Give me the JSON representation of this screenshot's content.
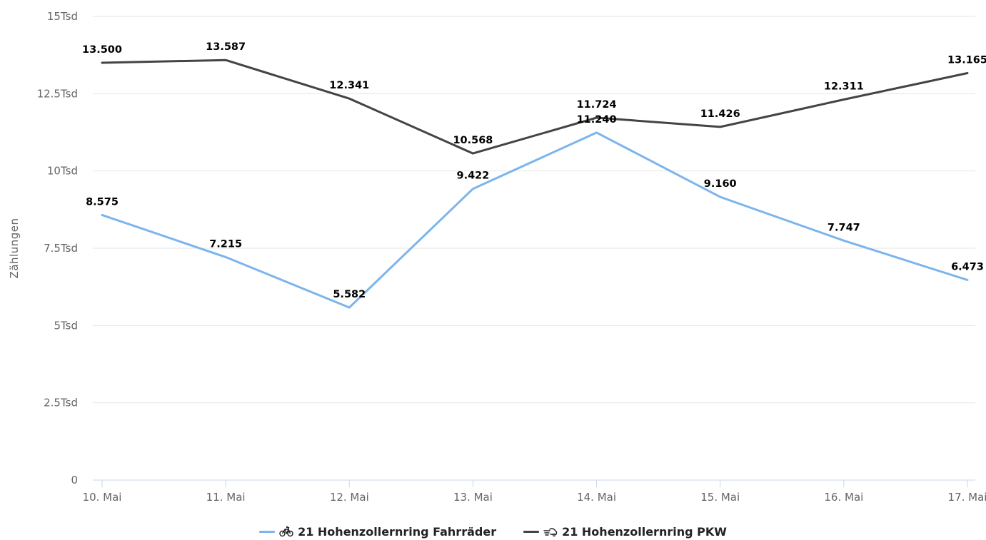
{
  "chart_data": {
    "type": "line",
    "categories": [
      "10. Mai",
      "11. Mai",
      "12. Mai",
      "13. Mai",
      "14. Mai",
      "15. Mai",
      "16. Mai",
      "17. Mai"
    ],
    "series": [
      {
        "name": "21 Hohenzollernring Fahrräder",
        "icon": "bicycle-icon",
        "color": "#7cb5ec",
        "values": [
          8575,
          7215,
          5582,
          9422,
          11240,
          9160,
          7747,
          6473
        ],
        "labels": [
          "8.575",
          "7.215",
          "5.582",
          "9.422",
          "11.240",
          "9.160",
          "7.747",
          "6.473"
        ]
      },
      {
        "name": "21 Hohenzollernring PKW",
        "icon": "car-icon",
        "color": "#434348",
        "values": [
          13500,
          13587,
          12341,
          10568,
          11724,
          11426,
          12311,
          13165
        ],
        "labels": [
          "13.500",
          "13.587",
          "12.341",
          "10.568",
          "11.724",
          "11.426",
          "12.311",
          "13.165"
        ]
      }
    ],
    "ylabel": "Zählungen",
    "ylim": [
      0,
      15000
    ],
    "yticks": [
      0,
      2500,
      5000,
      7500,
      10000,
      12500,
      15000
    ],
    "ytick_labels": [
      "0",
      "2.5Tsd",
      "5Tsd",
      "7.5Tsd",
      "10Tsd",
      "12.5Tsd",
      "15Tsd"
    ],
    "grid": true,
    "legend_position": "bottom-center",
    "gridline_color": "#e6e6e6",
    "axis_color": "#ccd6eb"
  }
}
